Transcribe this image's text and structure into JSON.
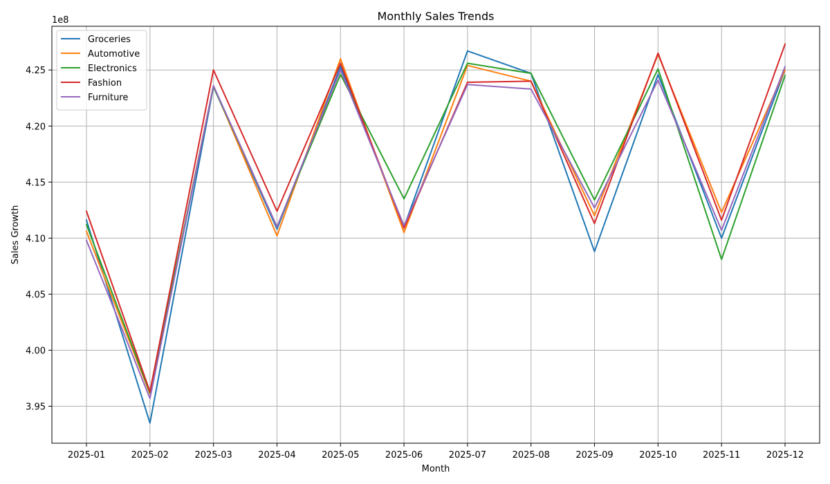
{
  "chart_data": {
    "type": "line",
    "title": "Monthly Sales Trends",
    "xlabel": "Month",
    "ylabel": "Sales Growth",
    "y_offset_label": "1e8",
    "y_scale": 100000000,
    "ylim": [
      3.917,
      4.289
    ],
    "yticks": [
      3.95,
      4.0,
      4.05,
      4.1,
      4.15,
      4.2,
      4.25
    ],
    "ytick_labels": [
      "3.95",
      "4.00",
      "4.05",
      "4.10",
      "4.15",
      "4.20",
      "4.25"
    ],
    "categories": [
      "2025-01",
      "2025-02",
      "2025-03",
      "2025-04",
      "2025-05",
      "2025-06",
      "2025-07",
      "2025-08",
      "2025-09",
      "2025-10",
      "2025-11",
      "2025-12"
    ],
    "grid": true,
    "legend_position": "top-left",
    "series": [
      {
        "name": "Groceries",
        "color": "#1f77b4",
        "values": [
          4.116,
          3.935,
          4.235,
          4.108,
          4.253,
          4.11,
          4.267,
          4.247,
          4.088,
          4.246,
          4.1,
          4.25
        ]
      },
      {
        "name": "Automotive",
        "color": "#ff7f0e",
        "values": [
          4.106,
          3.961,
          4.236,
          4.102,
          4.26,
          4.105,
          4.254,
          4.24,
          4.12,
          4.264,
          4.123,
          4.25
        ]
      },
      {
        "name": "Electronics",
        "color": "#2ca02c",
        "values": [
          4.112,
          3.962,
          4.235,
          4.11,
          4.246,
          4.135,
          4.256,
          4.247,
          4.134,
          4.251,
          4.081,
          4.245
        ]
      },
      {
        "name": "Fashion",
        "color": "#d62728",
        "values": [
          4.124,
          3.963,
          4.25,
          4.124,
          4.256,
          4.109,
          4.239,
          4.24,
          4.113,
          4.265,
          4.116,
          4.273
        ]
      },
      {
        "name": "Furniture",
        "color": "#9467bd",
        "values": [
          4.098,
          3.957,
          4.236,
          4.11,
          4.25,
          4.111,
          4.237,
          4.233,
          4.127,
          4.241,
          4.107,
          4.253
        ]
      }
    ]
  }
}
